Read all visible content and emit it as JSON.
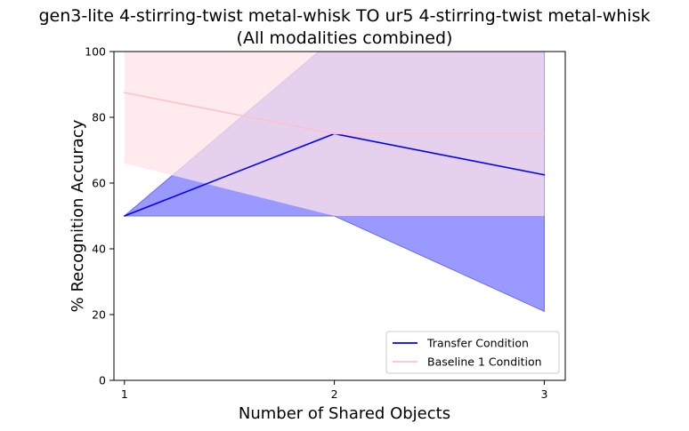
{
  "chart_data": {
    "type": "line",
    "title": "gen3-lite 4-stirring-twist metal-whisk TO ur5 4-stirring-twist metal-whisk",
    "subtitle": "(All modalities combined)",
    "xlabel": "Number of Shared Objects",
    "ylabel": "% Recognition Accuracy",
    "x": [
      1,
      2,
      3
    ],
    "xticks": [
      "1",
      "2",
      "3"
    ],
    "xlim": [
      0.95,
      3.1
    ],
    "ylim": [
      0,
      100
    ],
    "yticks": [
      "0",
      "20",
      "40",
      "60",
      "80",
      "100"
    ],
    "grid": false,
    "legend_position": "lower-right",
    "series": [
      {
        "name": "Transfer Condition",
        "color": "#0000ff",
        "band_color": "#9999ff",
        "values": [
          50,
          75,
          62.5
        ],
        "band_lower": [
          50,
          50,
          21
        ],
        "band_upper": [
          50,
          104,
          104
        ]
      },
      {
        "name": "Baseline 1 Condition",
        "color": "#ffc0cb",
        "band_color": "#ffe3e8",
        "values": [
          87.5,
          75,
          75
        ],
        "band_lower": [
          66,
          50,
          50
        ],
        "band_upper": [
          104,
          104,
          104
        ]
      }
    ],
    "overlap_color": "#c2aaea"
  }
}
